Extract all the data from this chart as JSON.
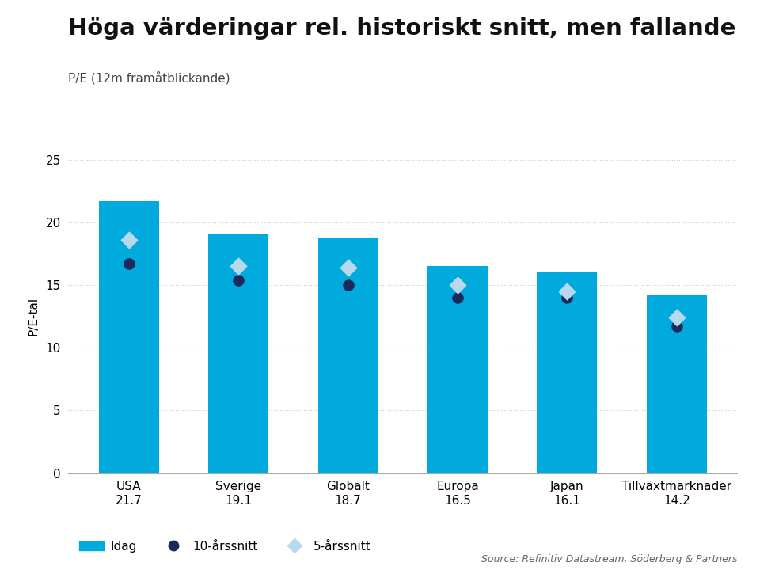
{
  "title": "Höga värderingar rel. historiskt snitt, men fallande",
  "subtitle": "P/E (12m framåtblickande)",
  "ylabel": "P/E-tal",
  "source": "Source: Refinitiv Datastream, Söderberg & Partners",
  "categories": [
    "USA",
    "Sverige",
    "Globalt",
    "Europa",
    "Japan",
    "Tillväxtmarknader"
  ],
  "values_today": [
    21.7,
    19.1,
    18.7,
    16.5,
    16.1,
    14.2
  ],
  "values_10yr": [
    16.7,
    15.4,
    15.0,
    14.0,
    14.0,
    11.7
  ],
  "values_5yr": [
    18.6,
    16.5,
    16.4,
    15.0,
    14.5,
    12.4
  ],
  "bar_color": "#00AADD",
  "dot_10yr_color": "#1a2a5e",
  "dot_5yr_color": "#b8d8ee",
  "ylim": [
    0,
    25
  ],
  "yticks": [
    0,
    5,
    10,
    15,
    20,
    25
  ],
  "grid_color": "#cccccc",
  "background_color": "#ffffff",
  "title_fontsize": 21,
  "subtitle_fontsize": 11,
  "tick_fontsize": 11,
  "legend_fontsize": 11,
  "bar_width": 0.55
}
